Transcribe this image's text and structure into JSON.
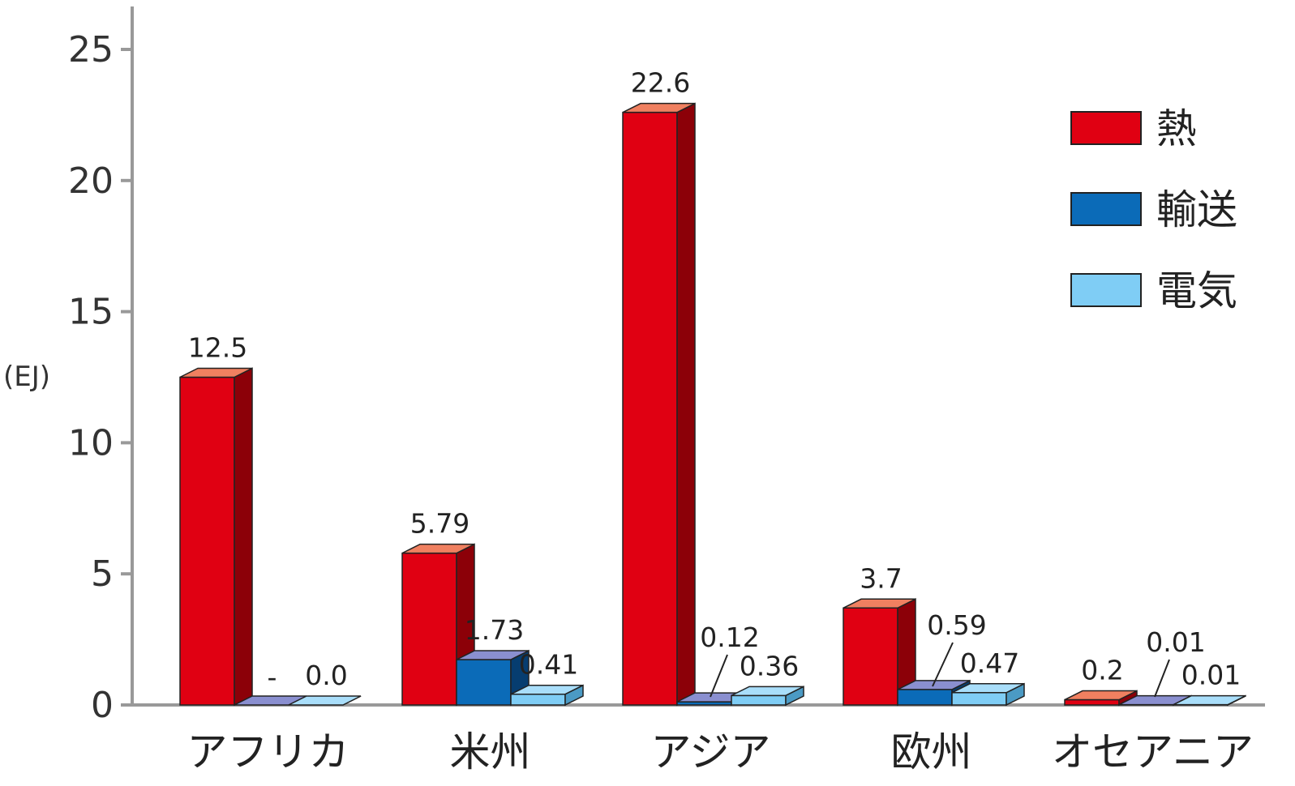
{
  "chart_data": {
    "type": "bar",
    "title": "",
    "xlabel": "",
    "ylabel": "(EJ)",
    "ylim": [
      0,
      25
    ],
    "yticks": [
      0,
      5,
      10,
      15,
      20,
      25
    ],
    "categories": [
      "アフリカ",
      "米州",
      "アジア",
      "欧州",
      "オセアニア"
    ],
    "series": [
      {
        "name": "熱",
        "values": [
          12.5,
          5.79,
          22.6,
          3.7,
          0.2
        ],
        "labels": [
          "12.5",
          "5.79",
          "22.6",
          "3.7",
          "0.2"
        ],
        "color": "#e00012",
        "side_color": "#8c0008",
        "top_color": "#f08060"
      },
      {
        "name": "輸送",
        "values": [
          0,
          1.73,
          0.12,
          0.59,
          0.01
        ],
        "labels": [
          "-",
          "1.73",
          "0.12",
          "0.59",
          "0.01"
        ],
        "color": "#0b6bb8",
        "side_color": "#063d70",
        "top_color": "#8a8fd0"
      },
      {
        "name": "電気",
        "values": [
          0.0,
          0.41,
          0.36,
          0.47,
          0.01
        ],
        "labels": [
          "0.0",
          "0.41",
          "0.36",
          "0.47",
          "0.01"
        ],
        "color": "#7fcdf5",
        "side_color": "#4b9ac4",
        "top_color": "#a9defa"
      }
    ],
    "grid": false,
    "legend": "top-right"
  }
}
